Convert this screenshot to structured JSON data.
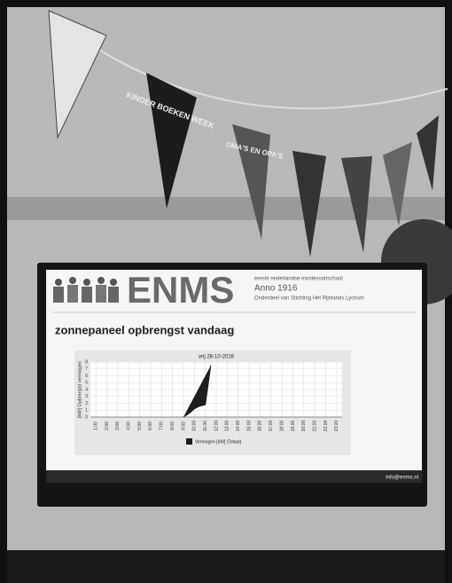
{
  "bunting": [
    "KINDER BOEKEN WEEK",
    "OMA'S EN OPA'S"
  ],
  "header": {
    "logo": "ENMS",
    "school": "eerste nederlandse montessorischool",
    "founded": "Anno 1916",
    "part_of": "Onderdeel van Stichting Het Rijnlands Lyceum"
  },
  "heading": "zonnepaneel opbrengst vandaag",
  "footer": "info@enms.nl",
  "chart_data": {
    "type": "area",
    "title": "vrij 28-10-2016",
    "y_label": "[kW] Opbrengst vermogen",
    "x": [
      9,
      9.5,
      10,
      10.5,
      11,
      11.5
    ],
    "series": [
      {
        "name": "Vermogen [kW] (Totaal)",
        "color": "#1e1e1e",
        "values": [
          0,
          0.5,
          1.2,
          1.6,
          1.8,
          7.5
        ]
      }
    ],
    "xlim": [
      0.5,
      23.5
    ],
    "xticks": [
      {
        "value": 1,
        "label": "1:00"
      },
      {
        "value": 2,
        "label": "2:00"
      },
      {
        "value": 3,
        "label": "3:00"
      },
      {
        "value": 4,
        "label": "4:00"
      },
      {
        "value": 5,
        "label": "5:00"
      },
      {
        "value": 6,
        "label": "6:00"
      },
      {
        "value": 7,
        "label": "7:00"
      },
      {
        "value": 8,
        "label": "8:00"
      },
      {
        "value": 9,
        "label": "9:00"
      },
      {
        "value": 10,
        "label": "10:00"
      },
      {
        "value": 11,
        "label": "11:00"
      },
      {
        "value": 12,
        "label": "12:00"
      },
      {
        "value": 13,
        "label": "13:00"
      },
      {
        "value": 14,
        "label": "14:00"
      },
      {
        "value": 15,
        "label": "15:00"
      },
      {
        "value": 16,
        "label": "16:00"
      },
      {
        "value": 17,
        "label": "17:00"
      },
      {
        "value": 18,
        "label": "18:00"
      },
      {
        "value": 19,
        "label": "19:00"
      },
      {
        "value": 20,
        "label": "20:00"
      },
      {
        "value": 21,
        "label": "21:00"
      },
      {
        "value": 22,
        "label": "22:00"
      },
      {
        "value": 23,
        "label": "23:00"
      }
    ],
    "ylim": [
      0,
      8
    ],
    "yticks": [
      0,
      1,
      2,
      3,
      4,
      5,
      6,
      7,
      8
    ],
    "grid": true
  }
}
